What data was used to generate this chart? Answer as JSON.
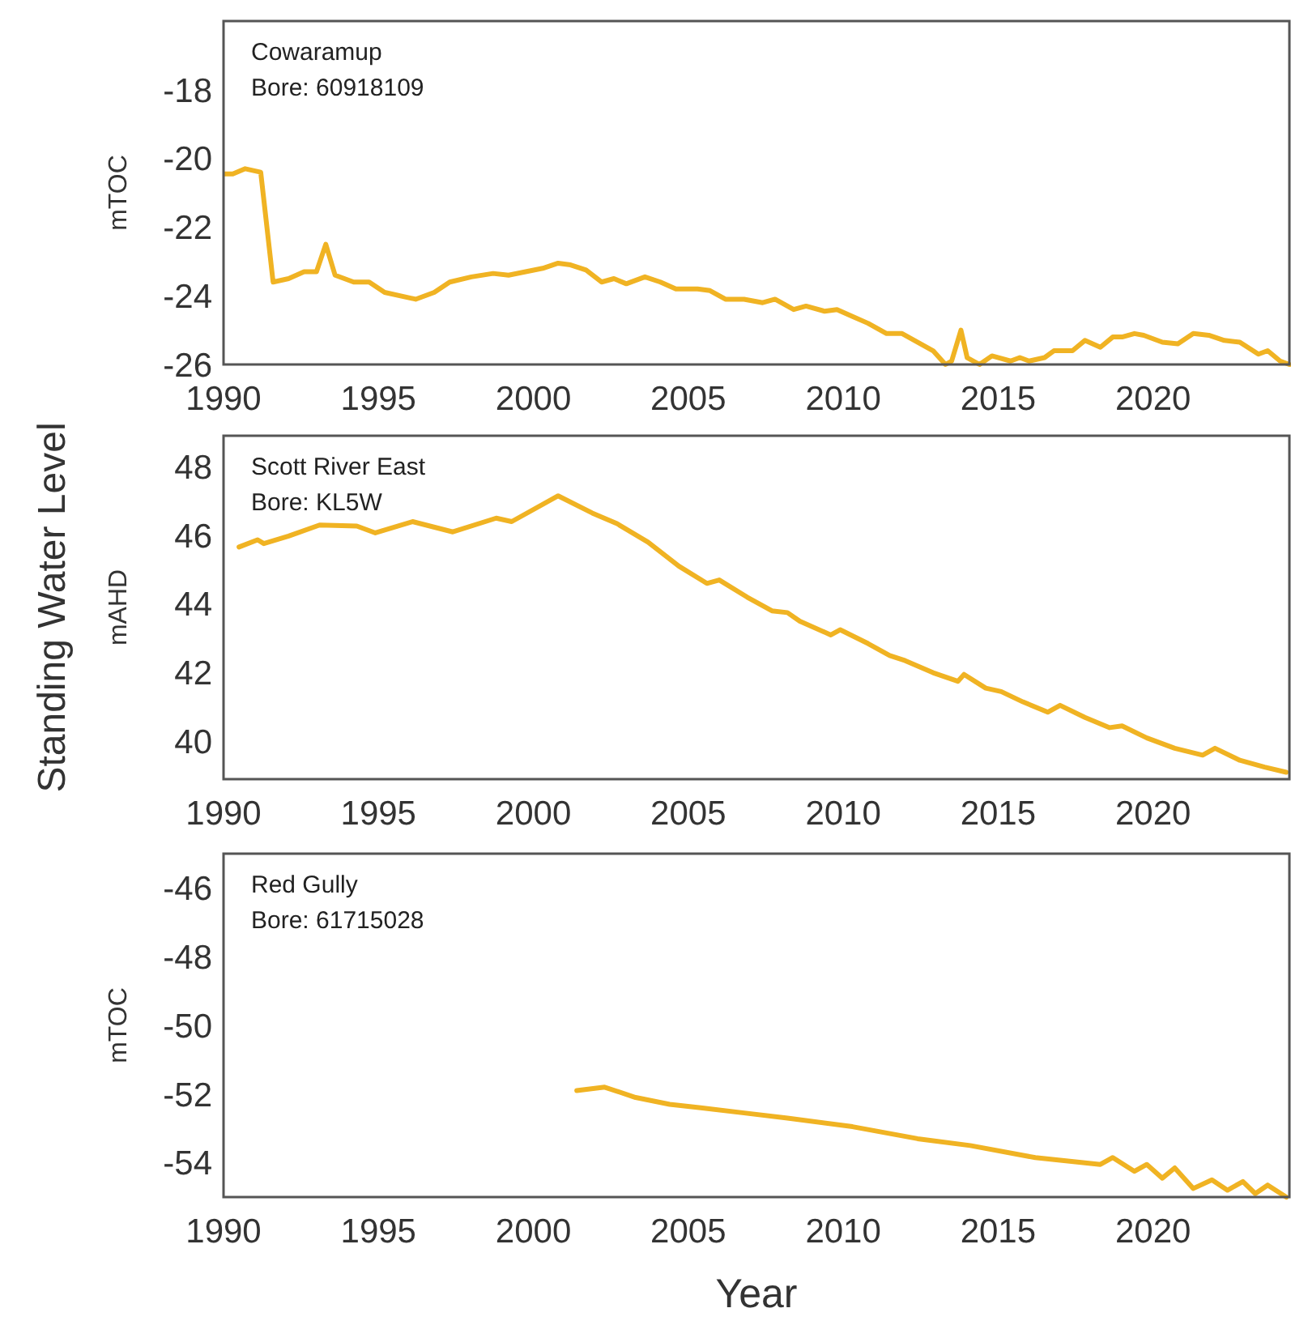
{
  "chart_data": [
    {
      "type": "line",
      "ylabel": "mTOC",
      "annotations": [
        "Cowaramup",
        "Bore: 60918109"
      ],
      "xlim": [
        1990,
        2024.4
      ],
      "xticks": [
        1990,
        1995,
        2000,
        2005,
        2010,
        2015,
        2020
      ],
      "ylim": [
        -26,
        -16
      ],
      "yticks": [
        -26,
        -24,
        -22,
        -20,
        -18
      ],
      "grid": false,
      "line_style": "solid",
      "marker": "none",
      "series": [
        {
          "color": "#f0b323",
          "x": [
            1990.0,
            1990.3,
            1990.7,
            1991.2,
            1991.6,
            1992.1,
            1992.6,
            1993.0,
            1993.3,
            1993.6,
            1994.2,
            1994.7,
            1995.2,
            1996.2,
            1996.8,
            1997.3,
            1998.0,
            1998.7,
            1999.2,
            2000.3,
            2000.8,
            2001.2,
            2001.7,
            2002.2,
            2002.6,
            2003.0,
            2003.6,
            2004.1,
            2004.6,
            2005.3,
            2005.7,
            2006.2,
            2006.8,
            2007.4,
            2007.8,
            2008.4,
            2008.8,
            2009.4,
            2009.8,
            2010.3,
            2010.8,
            2011.4,
            2011.9,
            2012.5,
            2012.9,
            2013.3,
            2013.5,
            2013.8,
            2014.0,
            2014.4,
            2014.8,
            2015.4,
            2015.7,
            2016.0,
            2016.5,
            2016.8,
            2017.4,
            2017.8,
            2018.3,
            2018.7,
            2019.0,
            2019.4,
            2019.7,
            2020.3,
            2020.8,
            2021.3,
            2021.8,
            2022.3,
            2022.8,
            2023.4,
            2023.7,
            2024.1,
            2024.4
          ],
          "values": [
            -20.45,
            -20.45,
            -20.3,
            -20.4,
            -23.6,
            -23.5,
            -23.3,
            -23.3,
            -22.5,
            -23.4,
            -23.6,
            -23.6,
            -23.9,
            -24.1,
            -23.9,
            -23.6,
            -23.45,
            -23.35,
            -23.4,
            -23.2,
            -23.05,
            -23.1,
            -23.25,
            -23.6,
            -23.5,
            -23.65,
            -23.45,
            -23.6,
            -23.8,
            -23.8,
            -23.85,
            -24.1,
            -24.1,
            -24.2,
            -24.1,
            -24.4,
            -24.3,
            -24.45,
            -24.4,
            -24.6,
            -24.8,
            -25.1,
            -25.1,
            -25.4,
            -25.6,
            -26.0,
            -25.9,
            -25.0,
            -25.8,
            -26.0,
            -25.75,
            -25.9,
            -25.8,
            -25.9,
            -25.8,
            -25.6,
            -25.6,
            -25.3,
            -25.5,
            -25.2,
            -25.2,
            -25.1,
            -25.15,
            -25.35,
            -25.4,
            -25.1,
            -25.15,
            -25.3,
            -25.35,
            -25.7,
            -25.6,
            -25.9,
            -26.0
          ]
        }
      ]
    },
    {
      "type": "line",
      "ylabel": "mAHD",
      "annotations": [
        "Scott River East",
        "Bore: KL5W",
        "Standing Water Level"
      ],
      "xlim": [
        1990,
        2024.4
      ],
      "xticks": [
        1990,
        1995,
        2000,
        2005,
        2010,
        2015,
        2020
      ],
      "ylim": [
        38.9,
        48.9
      ],
      "yticks": [
        40,
        42,
        44,
        46,
        48
      ],
      "grid": false,
      "line_style": "solid",
      "marker": "none",
      "series": [
        {
          "color": "#f0b323",
          "x": [
            1990.5,
            1991.1,
            1991.3,
            1992.1,
            1993.1,
            1994.3,
            1994.9,
            1996.1,
            1997.4,
            1998.8,
            1999.3,
            2000.8,
            2001.9,
            2002.7,
            2003.7,
            2004.7,
            2005.6,
            2006.0,
            2006.9,
            2007.7,
            2008.2,
            2008.6,
            2009.6,
            2009.9,
            2010.8,
            2011.5,
            2012.0,
            2012.9,
            2013.7,
            2013.9,
            2014.6,
            2015.1,
            2015.8,
            2016.6,
            2017.0,
            2017.8,
            2018.6,
            2019.0,
            2019.8,
            2020.7,
            2021.6,
            2022.0,
            2022.8,
            2023.6,
            2024.3
          ],
          "values": [
            45.66,
            45.87,
            45.76,
            45.98,
            46.3,
            46.27,
            46.07,
            46.4,
            46.1,
            46.5,
            46.4,
            47.15,
            46.65,
            46.34,
            45.8,
            45.1,
            44.6,
            44.7,
            44.2,
            43.8,
            43.75,
            43.5,
            43.1,
            43.25,
            42.85,
            42.5,
            42.35,
            42.0,
            41.75,
            41.95,
            41.55,
            41.45,
            41.15,
            40.85,
            41.05,
            40.7,
            40.4,
            40.45,
            40.1,
            39.8,
            39.6,
            39.8,
            39.45,
            39.25,
            39.1
          ]
        }
      ]
    },
    {
      "type": "line",
      "ylabel": "mTOC",
      "xlabel": "Year",
      "annotations": [
        "Red Gully",
        "Bore: 61715028"
      ],
      "xlim": [
        1990,
        2024.4
      ],
      "xticks": [
        1990,
        1995,
        2000,
        2005,
        2010,
        2015,
        2020
      ],
      "ylim": [
        -55,
        -45
      ],
      "yticks": [
        -54,
        -52,
        -50,
        -48,
        -46
      ],
      "grid": false,
      "line_style": "solid",
      "marker": "none",
      "series": [
        {
          "color": "#f0b323",
          "x": [
            2001.4,
            2002.3,
            2003.3,
            2004.4,
            2005.4,
            2006.8,
            2008.2,
            2010.3,
            2012.4,
            2014.1,
            2016.2,
            2018.3,
            2018.7,
            2019.4,
            2019.8,
            2020.3,
            2020.7,
            2021.3,
            2021.9,
            2022.4,
            2022.9,
            2023.3,
            2023.7,
            2024.3
          ],
          "values": [
            -51.9,
            -51.8,
            -52.1,
            -52.3,
            -52.4,
            -52.55,
            -52.7,
            -52.95,
            -53.3,
            -53.5,
            -53.85,
            -54.05,
            -53.85,
            -54.25,
            -54.05,
            -54.45,
            -54.15,
            -54.75,
            -54.5,
            -54.8,
            -54.55,
            -54.9,
            -54.65,
            -55.0
          ]
        }
      ]
    }
  ]
}
